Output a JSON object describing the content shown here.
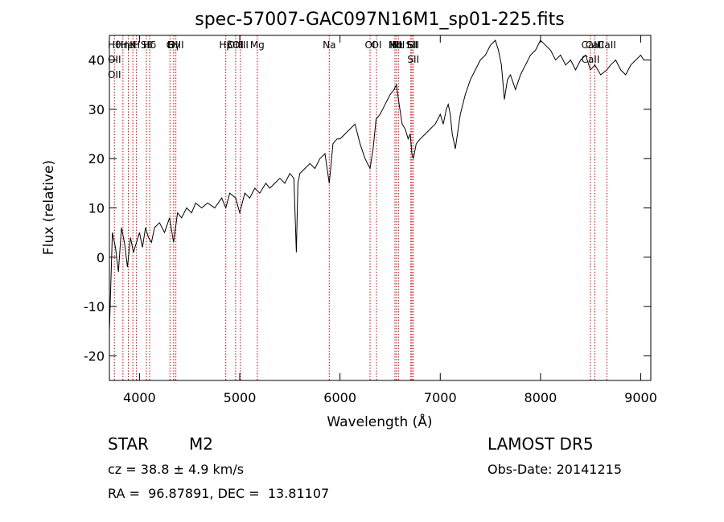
{
  "chart_data": {
    "type": "line",
    "title": "spec-57007-GAC097N16M1_sp01-225.fits",
    "xlabel": "Wavelength (Å)",
    "ylabel": "Flux (relative)",
    "xlim": [
      3700,
      9100
    ],
    "ylim": [
      -25,
      45
    ],
    "xticks": [
      4000,
      5000,
      6000,
      7000,
      8000,
      9000
    ],
    "yticks": [
      -20,
      -10,
      0,
      10,
      20,
      30,
      40
    ],
    "grid": false,
    "line_color": "#000000",
    "marker_color": "#cc0000",
    "series": [
      {
        "x": [
          3700,
          3730,
          3760,
          3790,
          3820,
          3850,
          3880,
          3910,
          3940,
          3970,
          4000,
          4030,
          4060,
          4090,
          4120,
          4150,
          4200,
          4250,
          4300,
          4340,
          4380,
          4420,
          4470,
          4520,
          4560,
          4620,
          4680,
          4750,
          4820,
          4861,
          4900,
          4960,
          5000,
          5050,
          5100,
          5150,
          5200,
          5260,
          5300,
          5350,
          5400,
          5450,
          5500,
          5540,
          5565,
          5580,
          5600,
          5650,
          5700,
          5750,
          5800,
          5850,
          5893,
          5930,
          5970,
          6000,
          6050,
          6100,
          6150,
          6200,
          6250,
          6300,
          6330,
          6360,
          6400,
          6450,
          6500,
          6540,
          6563,
          6590,
          6620,
          6650,
          6680,
          6700,
          6717,
          6731,
          6760,
          6800,
          6850,
          6900,
          6950,
          7000,
          7030,
          7060,
          7080,
          7100,
          7120,
          7150,
          7200,
          7250,
          7300,
          7350,
          7400,
          7450,
          7500,
          7550,
          7580,
          7610,
          7640,
          7670,
          7700,
          7750,
          7800,
          7850,
          7900,
          7950,
          8000,
          8050,
          8100,
          8150,
          8200,
          8250,
          8300,
          8350,
          8400,
          8450,
          8498,
          8542,
          8600,
          8662,
          8700,
          8750,
          8800,
          8850,
          8900,
          8950,
          9000,
          9030
        ],
        "y": [
          -15,
          5,
          2,
          -3,
          6,
          3,
          -2,
          4,
          1,
          3,
          5,
          2,
          6,
          4,
          3,
          6,
          7,
          5,
          8,
          3,
          9,
          8,
          10,
          9,
          11,
          10,
          11,
          10,
          12,
          10,
          13,
          12,
          9,
          13,
          12,
          14,
          13,
          15,
          14,
          15,
          16,
          15,
          17,
          16,
          1,
          15,
          17,
          18,
          19,
          18,
          20,
          21,
          15,
          23,
          24,
          24,
          25,
          26,
          27,
          23,
          20,
          18,
          22,
          28,
          29,
          31,
          33,
          34,
          35,
          31,
          27,
          26,
          24,
          25,
          21,
          20,
          23,
          24,
          25,
          26,
          27,
          29,
          27,
          30,
          31,
          29,
          25,
          22,
          29,
          33,
          36,
          38,
          40,
          41,
          43,
          44,
          42,
          39,
          32,
          36,
          37,
          34,
          37,
          39,
          41,
          42,
          44,
          43,
          42,
          40,
          41,
          39,
          40,
          38,
          40,
          41,
          38,
          39,
          37,
          38,
          39,
          40,
          38,
          37,
          39,
          40,
          41,
          40
        ]
      }
    ],
    "lines": [
      {
        "x": 3750,
        "labels": [
          "Hθ",
          "OII",
          "OII"
        ]
      },
      {
        "x": 3835,
        "labels": [
          "Hη"
        ]
      },
      {
        "x": 3889,
        "labels": [
          "HeI"
        ]
      },
      {
        "x": 3934,
        "labels": [
          "K"
        ]
      },
      {
        "x": 3970,
        "labels": [
          "H"
        ]
      },
      {
        "x": 4070,
        "labels": [
          "SII"
        ]
      },
      {
        "x": 4102,
        "labels": [
          "Hδ"
        ]
      },
      {
        "x": 4304,
        "labels": [
          "G"
        ]
      },
      {
        "x": 4341,
        "labels": [
          "Hγ"
        ]
      },
      {
        "x": 4363,
        "labels": [
          "OIII"
        ]
      },
      {
        "x": 4861,
        "labels": [
          "Hβ"
        ]
      },
      {
        "x": 4959,
        "labels": [
          "OIII"
        ]
      },
      {
        "x": 5007,
        "labels": [
          "OIII"
        ]
      },
      {
        "x": 5175,
        "labels": [
          "Mg"
        ]
      },
      {
        "x": 5893,
        "labels": [
          "Na"
        ]
      },
      {
        "x": 6300,
        "labels": [
          "OI"
        ]
      },
      {
        "x": 6364,
        "labels": [
          "OI"
        ]
      },
      {
        "x": 6548,
        "labels": [
          "NII"
        ]
      },
      {
        "x": 6563,
        "labels": [
          "Hα"
        ]
      },
      {
        "x": 6583,
        "labels": [
          "NII"
        ]
      },
      {
        "x": 6707,
        "labels": [
          "Li"
        ]
      },
      {
        "x": 6717,
        "labels": [
          "SII"
        ]
      },
      {
        "x": 6731,
        "labels": [
          "SII",
          "SII"
        ]
      },
      {
        "x": 8498,
        "labels": [
          "CaII",
          "CaII"
        ]
      },
      {
        "x": 8542,
        "labels": [
          "CaII"
        ]
      },
      {
        "x": 8662,
        "labels": [
          "CaII"
        ]
      }
    ]
  },
  "info": {
    "object_class": "STAR",
    "subclass": "M2",
    "survey": "LAMOST DR5",
    "redshift": "cz = 38.8 ± 4.9 km/s",
    "obs_date": "Obs-Date: 20141215",
    "coords": "RA =  96.87891, DEC =  13.81107"
  }
}
